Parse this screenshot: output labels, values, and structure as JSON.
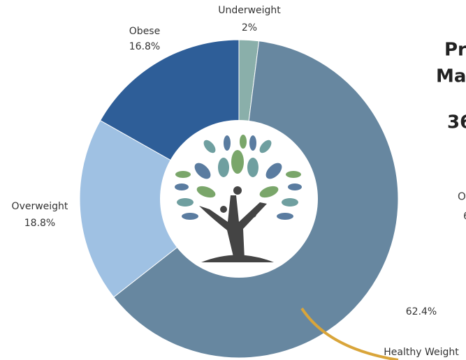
{
  "chart_data": {
    "type": "donut",
    "categories": [
      "Underweight",
      "Healthy Weight",
      "Overweight",
      "Obese"
    ],
    "values": [
      2,
      62.4,
      18.8,
      16.8
    ],
    "value_labels": [
      "2%",
      "62.4%",
      "18.8%",
      "16.8%"
    ],
    "colors": [
      "#8aafaa",
      "#6787a0",
      "#9fc1e3",
      "#2e5e98"
    ]
  },
  "side_text": [
    "Pr",
    "Ma",
    "36",
    "O",
    "6"
  ]
}
